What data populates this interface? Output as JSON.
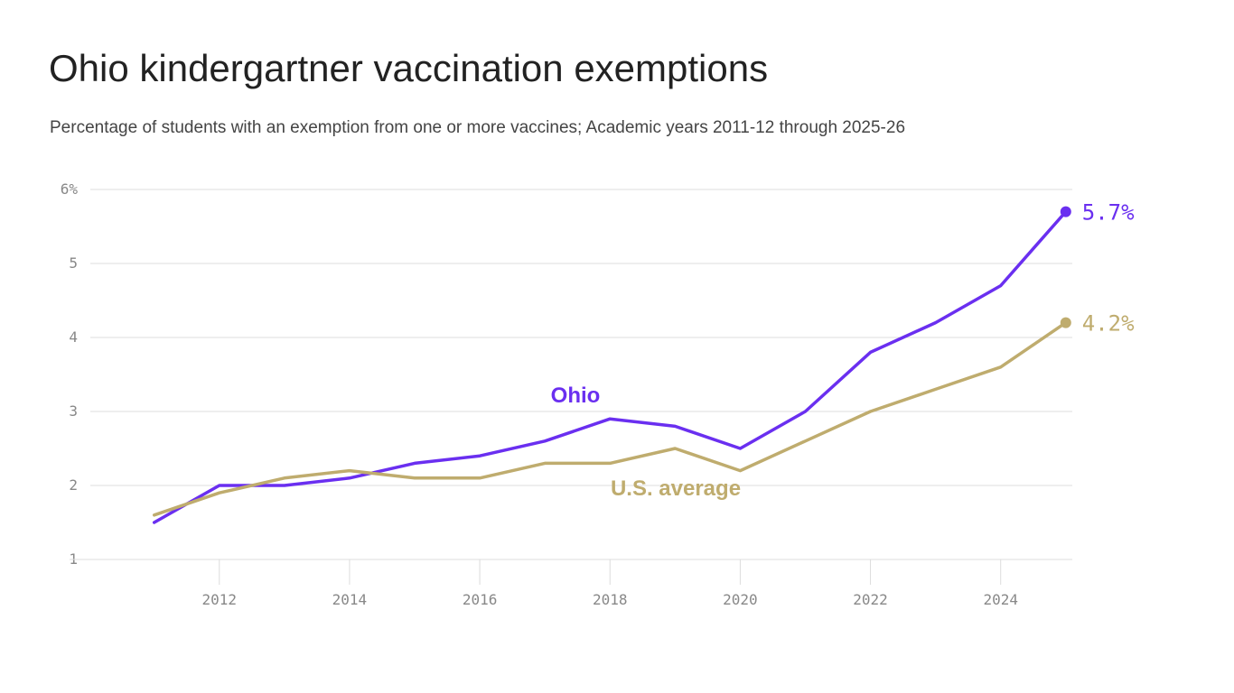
{
  "title": "Ohio kindergartner vaccination exemptions",
  "subtitle": "Percentage of students with an exemption from one or more vaccines; Academic years 2011-12 through 2025-26",
  "chart_data": {
    "type": "line",
    "x": [
      2011,
      2012,
      2013,
      2014,
      2015,
      2016,
      2017,
      2018,
      2019,
      2020,
      2021,
      2022,
      2023,
      2024,
      2025
    ],
    "series": [
      {
        "name": "Ohio",
        "color": "#6a2ff0",
        "values": [
          1.5,
          2.0,
          2.0,
          2.1,
          2.3,
          2.4,
          2.6,
          2.9,
          2.8,
          2.5,
          3.0,
          3.8,
          4.2,
          4.7,
          5.7
        ],
        "end_label": "5.7%"
      },
      {
        "name": "U.S. average",
        "color": "#bfac6e",
        "values": [
          1.6,
          1.9,
          2.1,
          2.2,
          2.1,
          2.1,
          2.3,
          2.3,
          2.5,
          2.2,
          2.6,
          3.0,
          3.3,
          3.6,
          4.2
        ],
        "end_label": "4.2%"
      }
    ],
    "y_ticks": [
      {
        "value": 1,
        "label": "1"
      },
      {
        "value": 2,
        "label": "2"
      },
      {
        "value": 3,
        "label": "3"
      },
      {
        "value": 4,
        "label": "4"
      },
      {
        "value": 5,
        "label": "5"
      },
      {
        "value": 6,
        "label": "6%"
      }
    ],
    "x_ticks": [
      {
        "value": 2012,
        "label": "2012"
      },
      {
        "value": 2014,
        "label": "2014"
      },
      {
        "value": 2016,
        "label": "2016"
      },
      {
        "value": 2018,
        "label": "2018"
      },
      {
        "value": 2020,
        "label": "2020"
      },
      {
        "value": 2022,
        "label": "2022"
      },
      {
        "value": 2024,
        "label": "2024"
      }
    ],
    "xlim": [
      2009.7,
      2025.1
    ],
    "ylim": [
      1,
      6
    ],
    "grid": true,
    "legend": "none"
  }
}
